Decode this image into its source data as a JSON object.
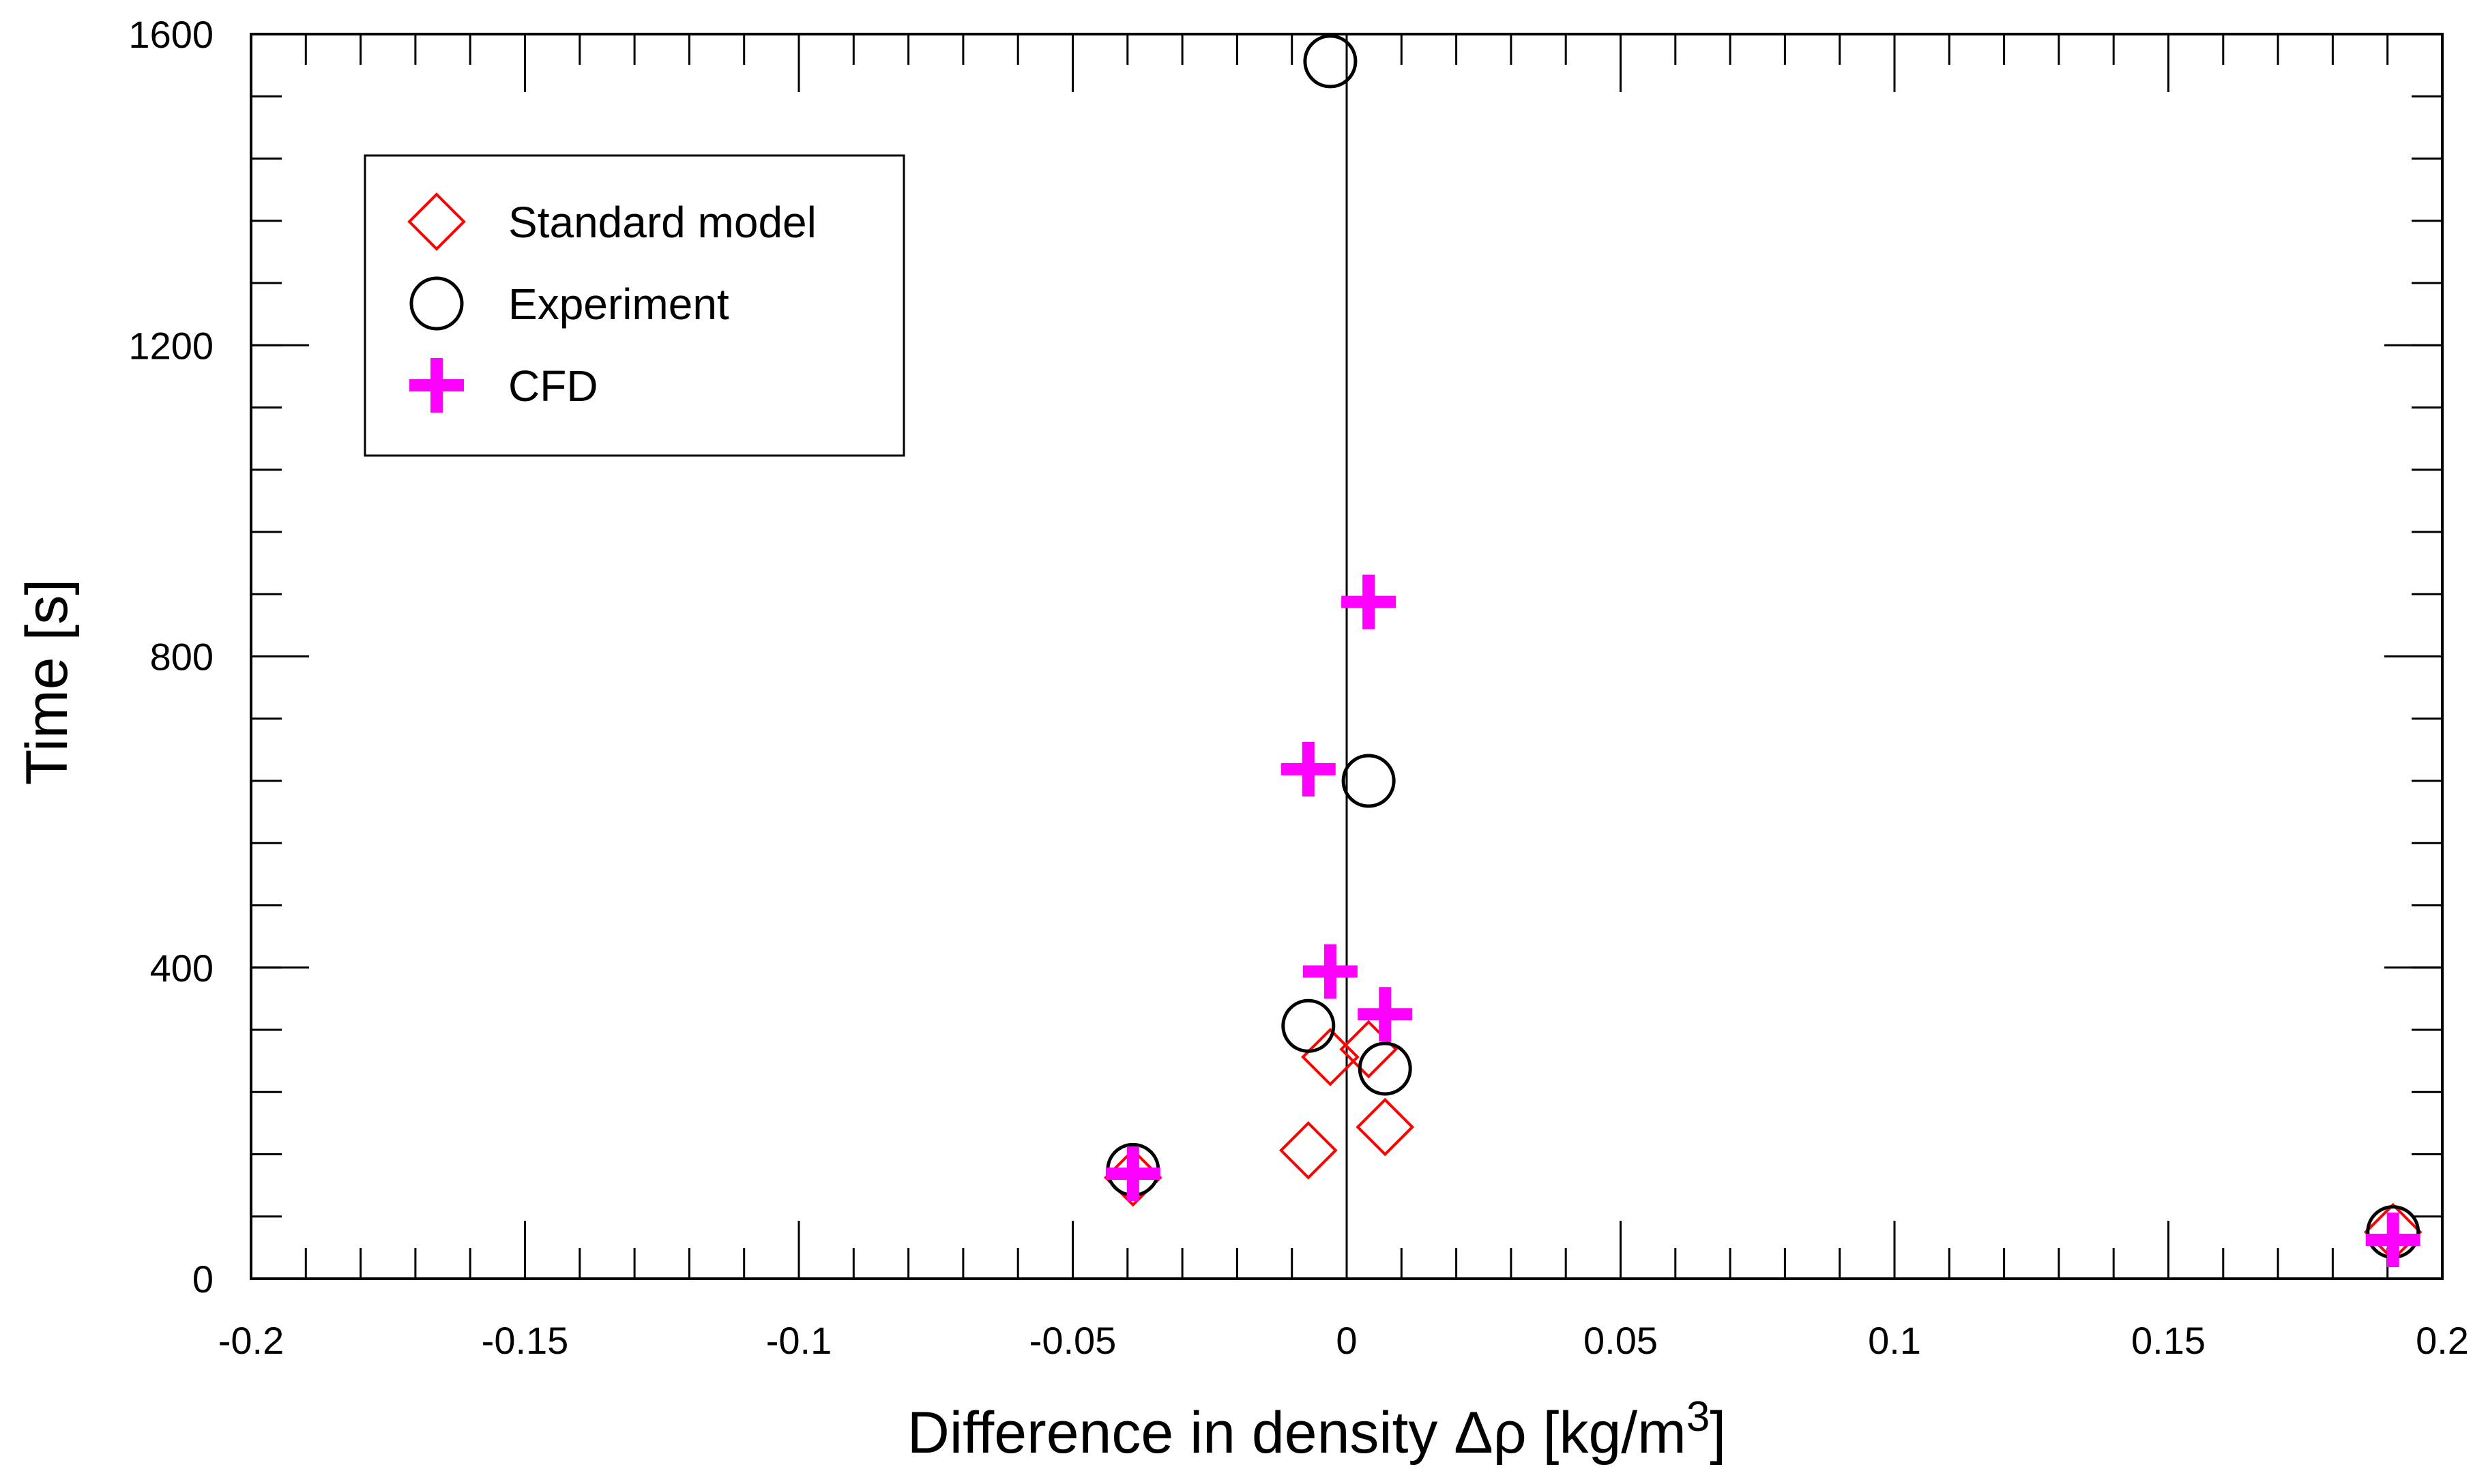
{
  "chart_data": {
    "type": "scatter",
    "xlabel": "Difference in density Δρ [kg/m",
    "xlabel_superscript": "3",
    "xlabel_suffix": "]",
    "ylabel": "Time [s]",
    "xlim": [
      -0.2,
      0.2
    ],
    "ylim": [
      0,
      1600
    ],
    "x_ticks": [
      -0.2,
      -0.15,
      -0.1,
      -0.05,
      0,
      0.05,
      0.1,
      0.15,
      0.2
    ],
    "x_tick_labels": [
      "-0.2",
      "-0.15",
      "-0.1",
      "-0.05",
      "0",
      "0.05",
      "0.1",
      "0.15",
      "0.2"
    ],
    "y_ticks": [
      0,
      400,
      800,
      1200,
      1600
    ],
    "y_tick_labels": [
      "0",
      "400",
      "800",
      "1200",
      "1600"
    ],
    "x_minor_step": 0.01,
    "y_minor_step": 80,
    "zero_line": true,
    "legend_position": "top-left",
    "series": [
      {
        "name": "Standard model",
        "marker": "diamond",
        "color": "#ff0000",
        "points": [
          {
            "x": -0.039,
            "y": 130
          },
          {
            "x": -0.007,
            "y": 165
          },
          {
            "x": -0.003,
            "y": 285
          },
          {
            "x": 0.004,
            "y": 295
          },
          {
            "x": 0.007,
            "y": 195
          },
          {
            "x": 0.191,
            "y": 60
          }
        ]
      },
      {
        "name": "Experiment",
        "marker": "circle",
        "color": "#000000",
        "points": [
          {
            "x": -0.039,
            "y": 140
          },
          {
            "x": -0.007,
            "y": 325
          },
          {
            "x": -0.003,
            "y": 1565
          },
          {
            "x": 0.004,
            "y": 640
          },
          {
            "x": 0.007,
            "y": 270
          },
          {
            "x": 0.191,
            "y": 60
          }
        ]
      },
      {
        "name": "CFD",
        "marker": "plus",
        "color": "#ff00ff",
        "points": [
          {
            "x": -0.039,
            "y": 135
          },
          {
            "x": -0.007,
            "y": 655
          },
          {
            "x": -0.003,
            "y": 395
          },
          {
            "x": 0.004,
            "y": 870
          },
          {
            "x": 0.007,
            "y": 340
          },
          {
            "x": 0.191,
            "y": 50
          }
        ]
      }
    ]
  }
}
